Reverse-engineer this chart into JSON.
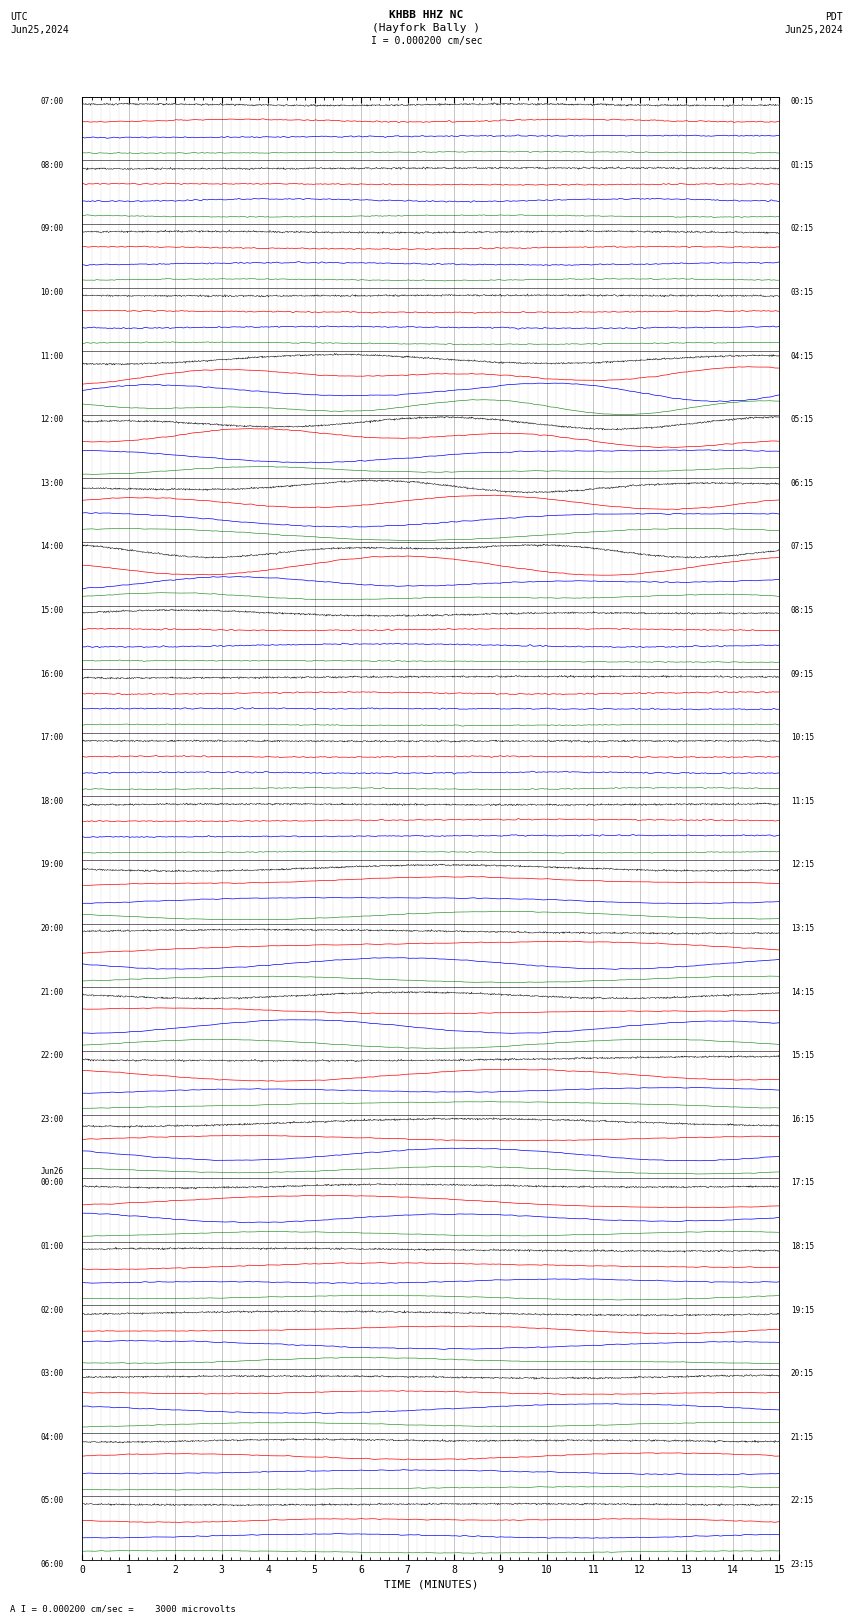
{
  "title_line1": "KHBB HHZ NC",
  "title_line2": "(Hayfork Bally )",
  "title_line3": "I = 0.000200 cm/sec",
  "left_label_top": "UTC",
  "left_label_date": "Jun25,2024",
  "right_label_top": "PDT",
  "right_label_date": "Jun25,2024",
  "xlabel": "TIME (MINUTES)",
  "scale_label": "A I = 0.000200 cm/sec =    3000 microvolts",
  "colors": [
    "black",
    "red",
    "blue",
    "green"
  ],
  "n_rows": 92,
  "x_min": 0,
  "x_max": 15,
  "x_ticks": [
    0,
    1,
    2,
    3,
    4,
    5,
    6,
    7,
    8,
    9,
    10,
    11,
    12,
    13,
    14,
    15
  ],
  "background_color": "#ffffff",
  "grid_color": "#999999",
  "fig_width": 8.5,
  "fig_height": 16.13
}
